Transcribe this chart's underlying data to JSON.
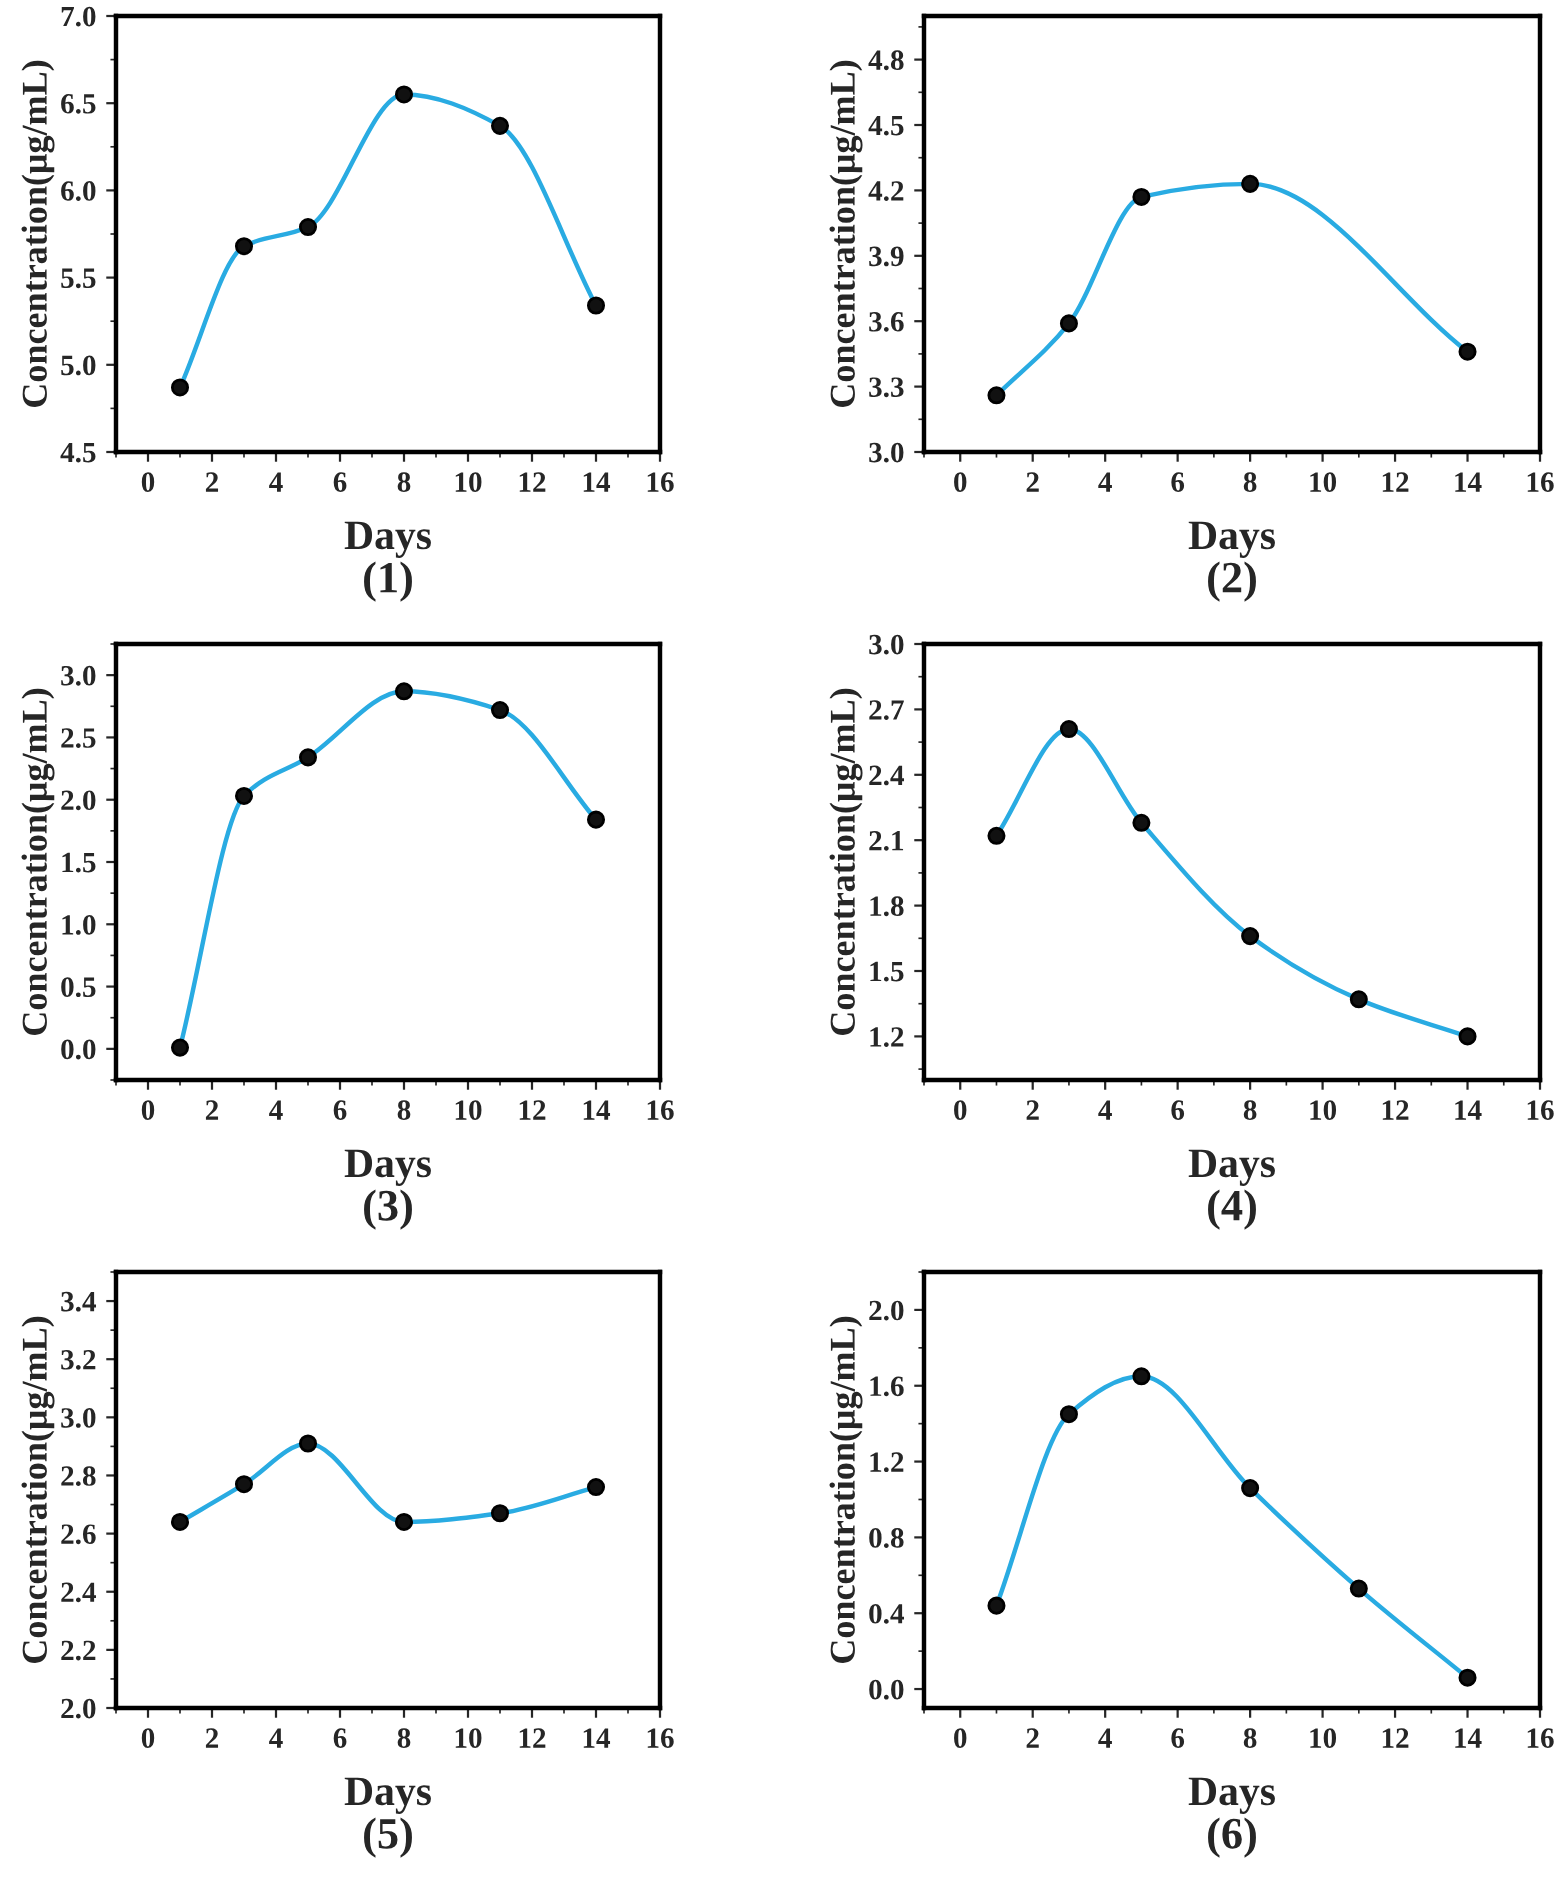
{
  "chart_data": [
    {
      "type": "line",
      "title": "(1)",
      "xlabel": "Days",
      "ylabel": "Concentration(μg/mL)",
      "x": [
        1,
        3,
        5,
        8,
        11,
        14
      ],
      "series": [
        {
          "color": "#29abe2",
          "values": [
            4.87,
            5.68,
            5.79,
            6.55,
            6.37,
            5.34
          ]
        }
      ],
      "xlim": [
        -1,
        16
      ],
      "xticks": [
        0,
        2,
        4,
        6,
        8,
        10,
        12,
        14,
        16
      ],
      "ylim": [
        4.5,
        7.0
      ],
      "yticks": [
        4.5,
        {
          "value": 5,
          "label": "5.0"
        },
        5.5,
        {
          "value": 6,
          "label": "6.0"
        },
        6.5,
        {
          "value": 7,
          "label": "7.0"
        }
      ],
      "marker": "circle",
      "line_style": "solid",
      "grid": false,
      "legend": false
    },
    {
      "type": "line",
      "title": "(2)",
      "xlabel": "Days",
      "ylabel": "Concentration(μg/mL)",
      "x": [
        1,
        3,
        5,
        8,
        14
      ],
      "series": [
        {
          "color": "#29abe2",
          "values": [
            3.26,
            3.59,
            4.17,
            4.23,
            3.46
          ]
        }
      ],
      "xlim": [
        -1,
        16
      ],
      "xticks": [
        0,
        2,
        4,
        6,
        8,
        10,
        12,
        14,
        16
      ],
      "ylim": [
        3.0,
        5.0
      ],
      "yticks": [
        {
          "value": 3,
          "label": "3.0"
        },
        3.3,
        3.6,
        3.9,
        4.2,
        4.5,
        4.8
      ],
      "marker": "circle",
      "line_style": "solid",
      "grid": false,
      "legend": false
    },
    {
      "type": "line",
      "title": "(3)",
      "xlabel": "Days",
      "ylabel": "Concentration(μg/mL)",
      "x": [
        1,
        3,
        5,
        8,
        11,
        14
      ],
      "series": [
        {
          "color": "#29abe2",
          "values": [
            0.01,
            2.03,
            2.34,
            2.87,
            2.72,
            1.84
          ]
        }
      ],
      "xlim": [
        -1,
        16
      ],
      "xticks": [
        0,
        2,
        4,
        6,
        8,
        10,
        12,
        14,
        16
      ],
      "ylim": [
        -0.25,
        3.25
      ],
      "yticks": [
        {
          "value": 0,
          "label": "0.0"
        },
        0.5,
        {
          "value": 1,
          "label": "1.0"
        },
        1.5,
        {
          "value": 2,
          "label": "2.0"
        },
        2.5,
        {
          "value": 3,
          "label": "3.0"
        }
      ],
      "marker": "circle",
      "line_style": "solid",
      "grid": false,
      "legend": false
    },
    {
      "type": "line",
      "title": "(4)",
      "xlabel": "Days",
      "ylabel": "Concentration(μg/mL)",
      "x": [
        1,
        3,
        5,
        8,
        11,
        14
      ],
      "series": [
        {
          "color": "#29abe2",
          "values": [
            2.12,
            2.61,
            2.18,
            1.66,
            1.37,
            1.2
          ]
        }
      ],
      "xlim": [
        -1,
        16
      ],
      "xticks": [
        0,
        2,
        4,
        6,
        8,
        10,
        12,
        14,
        16
      ],
      "ylim": [
        1.0,
        3.0
      ],
      "yticks": [
        1.2,
        1.5,
        1.8,
        2.1,
        2.4,
        2.7,
        {
          "value": 3,
          "label": "3.0"
        }
      ],
      "marker": "circle",
      "line_style": "solid",
      "grid": false,
      "legend": false
    },
    {
      "type": "line",
      "title": "(5)",
      "xlabel": "Days",
      "ylabel": "Concentration(μg/mL)",
      "x": [
        1,
        3,
        5,
        8,
        11,
        14
      ],
      "series": [
        {
          "color": "#29abe2",
          "values": [
            2.64,
            2.77,
            2.91,
            2.64,
            2.67,
            2.76
          ]
        }
      ],
      "xlim": [
        -1,
        16
      ],
      "xticks": [
        0,
        2,
        4,
        6,
        8,
        10,
        12,
        14,
        16
      ],
      "ylim": [
        2.0,
        3.5
      ],
      "yticks": [
        {
          "value": 2,
          "label": "2.0"
        },
        2.2,
        2.4,
        2.6,
        2.8,
        {
          "value": 3,
          "label": "3.0"
        },
        3.2,
        3.4
      ],
      "marker": "circle",
      "line_style": "solid",
      "grid": false,
      "legend": false
    },
    {
      "type": "line",
      "title": "(6)",
      "xlabel": "Days",
      "ylabel": "Concentration(μg/mL)",
      "x": [
        1,
        3,
        5,
        8,
        11,
        14
      ],
      "series": [
        {
          "color": "#29abe2",
          "values": [
            0.44,
            1.45,
            1.65,
            1.06,
            0.53,
            0.06
          ]
        }
      ],
      "xlim": [
        -1,
        16
      ],
      "xticks": [
        0,
        2,
        4,
        6,
        8,
        10,
        12,
        14,
        16
      ],
      "ylim": [
        -0.1,
        2.2
      ],
      "yticks": [
        {
          "value": 0,
          "label": "0.0"
        },
        0.4,
        0.8,
        1.2,
        1.6,
        {
          "value": 2,
          "label": "2.0"
        }
      ],
      "marker": "circle",
      "line_style": "solid",
      "grid": false,
      "legend": false
    }
  ]
}
